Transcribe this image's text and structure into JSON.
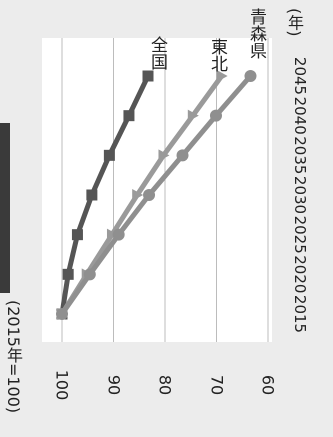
{
  "unit_label": "(年)",
  "chart_data": {
    "type": "line",
    "orientation": "rotated 90 degrees clockwise",
    "ylabel": "(2015年=100)",
    "x": [
      2015,
      2020,
      2025,
      2030,
      2035,
      2040,
      2045
    ],
    "xlim": [
      2015,
      2045
    ],
    "ylim": [
      60,
      100
    ],
    "yticks": [
      100,
      90,
      80,
      70,
      60
    ],
    "grid": true,
    "series": [
      {
        "name": "全国",
        "marker": "square",
        "color": "#555555",
        "values": [
          100,
          98.8,
          97.0,
          94.2,
          90.8,
          87.0,
          83.3
        ]
      },
      {
        "name": "東北",
        "marker": "triangle",
        "color": "#9a9a9a",
        "values": [
          100,
          95.2,
          90.3,
          85.4,
          80.3,
          74.6,
          69.0
        ]
      },
      {
        "name": "青森県",
        "marker": "circle",
        "color": "#8f8f8f",
        "values": [
          100,
          94.6,
          89.0,
          83.1,
          76.6,
          70.1,
          63.4
        ]
      }
    ]
  }
}
